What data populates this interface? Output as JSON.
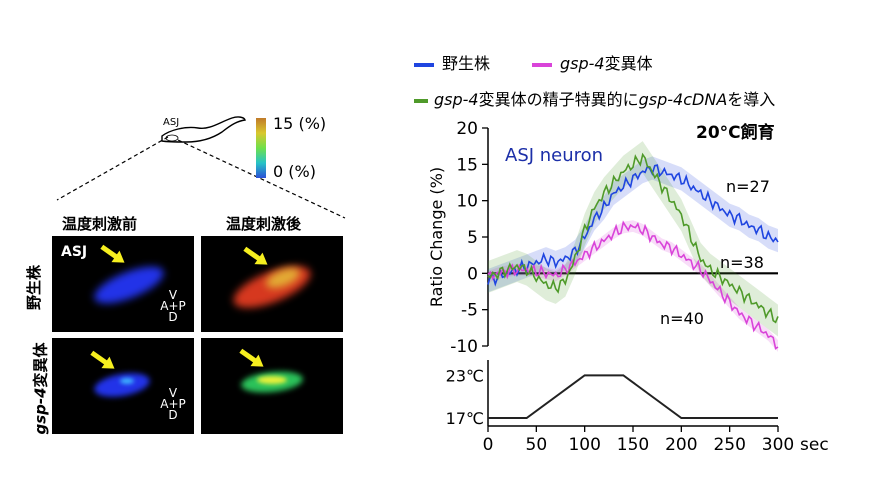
{
  "worm": {
    "neuron_label": "ASJ"
  },
  "colorbar": {
    "max_label": "15 (%)",
    "min_label": "0 (%)"
  },
  "panels": {
    "col_before": "温度刺激前",
    "col_after": "温度刺激後",
    "row_wt": "野生株",
    "row_mut_italic": "gsp-4",
    "row_mut_rest": "変異体",
    "panel_label": "ASJ",
    "orient": {
      "v": "V",
      "a": "A",
      "p": "P",
      "d": "D"
    }
  },
  "legend": {
    "wt": {
      "label": "野生株",
      "color": "#1f45e0"
    },
    "mut": {
      "italic": "gsp-4",
      "rest": "変異体",
      "color": "#d944d9"
    },
    "rescue": {
      "italic1": "gsp-4",
      "mid": "変異体の精子特異的に",
      "italic2": "gsp-4cDNA",
      "rest": "を導入",
      "color": "#4f9a2a"
    }
  },
  "chart_data": [
    {
      "type": "line",
      "ylabel": "Ratio Change (%)",
      "ylim": [
        -10,
        20
      ],
      "yticks": [
        -10,
        -5,
        0,
        5,
        10,
        15,
        20
      ],
      "xlim": [
        0,
        300
      ],
      "annotations": {
        "neuron": "ASJ neuron",
        "condition": "20°C飼育",
        "n_wt": "n=27",
        "n_rescue": "n=38",
        "n_mut": "n=40"
      },
      "series": [
        {
          "key": "wt",
          "color": "#1f45e0",
          "err": 1.6,
          "x": [
            0,
            10,
            20,
            30,
            40,
            50,
            60,
            70,
            80,
            90,
            100,
            110,
            120,
            130,
            140,
            150,
            160,
            170,
            180,
            190,
            200,
            210,
            220,
            230,
            240,
            250,
            260,
            270,
            280,
            290,
            300
          ],
          "y": [
            -1,
            -0.5,
            0,
            0.5,
            1,
            1.5,
            2,
            1.5,
            2,
            3,
            5,
            7.5,
            9,
            11,
            12,
            13,
            14,
            14.5,
            14,
            13.5,
            13,
            12,
            11,
            10,
            9,
            8,
            7.5,
            6.5,
            6,
            5,
            4.5
          ]
        },
        {
          "key": "mut",
          "color": "#d944d9",
          "err": 0.8,
          "x": [
            0,
            10,
            20,
            30,
            40,
            50,
            60,
            70,
            80,
            90,
            100,
            110,
            120,
            130,
            140,
            150,
            160,
            170,
            180,
            190,
            200,
            210,
            220,
            230,
            240,
            250,
            260,
            270,
            280,
            290,
            300
          ],
          "y": [
            -0.5,
            0,
            0.3,
            0.5,
            0.5,
            0.3,
            0,
            -0.3,
            0.5,
            1.5,
            2.5,
            3.5,
            4.5,
            5.5,
            6.3,
            6.5,
            6,
            5,
            4,
            3.5,
            2.5,
            1.5,
            0.5,
            -1,
            -2.5,
            -4,
            -5.5,
            -6.5,
            -7.5,
            -8.5,
            -10
          ]
        },
        {
          "key": "rescue",
          "color": "#4f9a2a",
          "err": 2.2,
          "x": [
            0,
            10,
            20,
            30,
            40,
            50,
            60,
            70,
            80,
            90,
            100,
            110,
            120,
            130,
            140,
            150,
            160,
            170,
            180,
            190,
            200,
            210,
            220,
            230,
            240,
            250,
            260,
            270,
            280,
            290,
            300
          ],
          "y": [
            -0.5,
            0,
            0.5,
            1,
            0.5,
            -0.5,
            -1.5,
            -2,
            -1,
            2,
            6,
            9,
            11,
            12.5,
            14,
            15,
            16,
            14,
            12,
            10,
            8,
            5,
            2,
            0.5,
            -0.5,
            -1.5,
            -2.5,
            -3.5,
            -4.5,
            -5.5,
            -6.5
          ]
        }
      ]
    },
    {
      "type": "line",
      "xlabel": "sec",
      "xlim": [
        0,
        300
      ],
      "xticks": [
        0,
        50,
        100,
        150,
        200,
        250,
        300
      ],
      "ylim": [
        17,
        23
      ],
      "ytick_labels": [
        "23℃",
        "17℃"
      ],
      "series": [
        {
          "key": "temperature",
          "color": "#222222",
          "x": [
            0,
            40,
            100,
            140,
            200,
            300
          ],
          "y": [
            17,
            17,
            23,
            23,
            17,
            17
          ]
        }
      ]
    }
  ]
}
